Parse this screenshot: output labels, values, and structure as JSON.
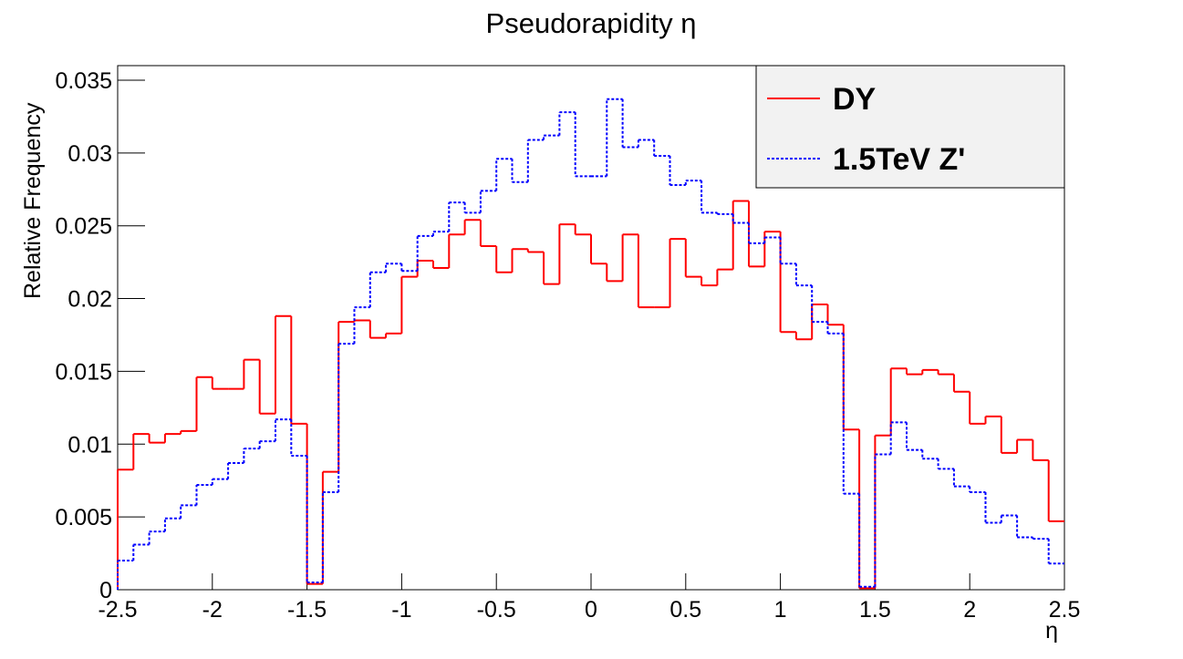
{
  "chart_data": {
    "type": "histogram",
    "title": "Pseudorapidity η",
    "xlabel": "η",
    "ylabel": "Relative Frequency",
    "bins": [
      -2.5,
      -2.4167,
      -2.3333,
      -2.25,
      -2.1667,
      -2.0833,
      -2,
      -1.9167,
      -1.8333,
      -1.75,
      -1.6667,
      -1.5833,
      -1.5,
      -1.4167,
      -1.3333,
      -1.25,
      -1.1667,
      -1.0833,
      -1,
      -0.9167,
      -0.8333,
      -0.75,
      -0.6667,
      -0.5833,
      -0.5,
      -0.4167,
      -0.3333,
      -0.25,
      -0.1667,
      -0.0833,
      0,
      0.0833,
      0.1667,
      0.25,
      0.3333,
      0.4167,
      0.5,
      0.5833,
      0.6667,
      0.75,
      0.8333,
      0.9167,
      1,
      1.0833,
      1.1667,
      1.25,
      1.3333,
      1.4167,
      1.5,
      1.5833,
      1.6667,
      1.75,
      1.8333,
      1.9167,
      2,
      2.0833,
      2.1667,
      2.25,
      2.3333,
      2.4167,
      2.5
    ],
    "series": [
      {
        "name": "DY",
        "color": "#ff0000",
        "line": "solid",
        "values": [
          0.00825,
          0.0107,
          0.0101,
          0.0107,
          0.0109,
          0.0146,
          0.0138,
          0.0138,
          0.0158,
          0.0121,
          0.0188,
          0.0114,
          0.0004,
          0.0081,
          0.0184,
          0.0185,
          0.0173,
          0.0176,
          0.0215,
          0.0226,
          0.0221,
          0.0244,
          0.0254,
          0.0236,
          0.0218,
          0.0234,
          0.0232,
          0.021,
          0.0251,
          0.0244,
          0.0224,
          0.0212,
          0.0244,
          0.0194,
          0.0194,
          0.0241,
          0.0215,
          0.0209,
          0.022,
          0.0267,
          0.0222,
          0.0246,
          0.0177,
          0.0172,
          0.0196,
          0.0182,
          0.011,
          0.0001,
          0.0106,
          0.0152,
          0.0148,
          0.0151,
          0.0148,
          0.0136,
          0.0114,
          0.0119,
          0.0094,
          0.0103,
          0.0089,
          0.0047
        ]
      },
      {
        "name": "1.5TeV Z'",
        "color": "#0000ff",
        "line": "dotted",
        "values": [
          0.002,
          0.0031,
          0.004,
          0.0049,
          0.0058,
          0.0072,
          0.0076,
          0.0087,
          0.0097,
          0.0102,
          0.0117,
          0.0092,
          0.0005,
          0.0067,
          0.0169,
          0.0194,
          0.0218,
          0.0224,
          0.0219,
          0.0243,
          0.0246,
          0.0266,
          0.0259,
          0.0274,
          0.0296,
          0.028,
          0.0309,
          0.0312,
          0.0328,
          0.0284,
          0.0284,
          0.0337,
          0.0304,
          0.0309,
          0.0298,
          0.0278,
          0.0281,
          0.0259,
          0.0258,
          0.0252,
          0.0238,
          0.0242,
          0.0224,
          0.0209,
          0.0184,
          0.0176,
          0.0066,
          0.0002,
          0.0093,
          0.0115,
          0.0096,
          0.009,
          0.0083,
          0.0071,
          0.0067,
          0.0046,
          0.0051,
          0.0036,
          0.0035,
          0.0018
        ]
      }
    ],
    "xlim": [
      -2.5,
      2.5
    ],
    "xticks": [
      -2.5,
      -2,
      -1.5,
      -1,
      -0.5,
      0,
      0.5,
      1,
      1.5,
      2,
      2.5
    ],
    "ylim": [
      0,
      0.036
    ],
    "yticks": [
      0,
      0.005,
      0.01,
      0.015,
      0.02,
      0.025,
      0.03,
      0.035
    ],
    "legend": "top-right"
  }
}
